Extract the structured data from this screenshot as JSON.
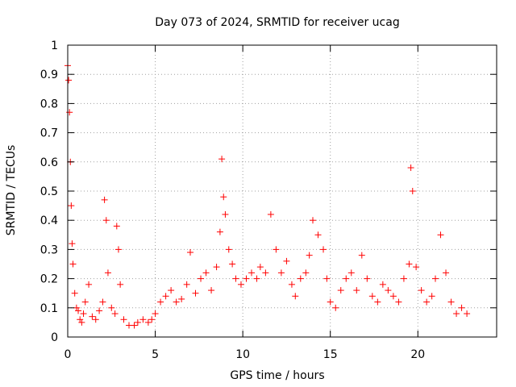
{
  "chart_data": {
    "type": "scatter",
    "title": "Day 073 of 2024, SRMTID for receiver ucag",
    "xlabel": "GPS time / hours",
    "ylabel": "SRMTID / TECUs",
    "xlim": [
      0,
      24.5
    ],
    "ylim": [
      0,
      1
    ],
    "xticks": [
      0,
      5,
      10,
      15,
      20
    ],
    "yticks": [
      0,
      0.1,
      0.2,
      0.3,
      0.4,
      0.5,
      0.6,
      0.7,
      0.8,
      0.9,
      1
    ],
    "ytick_labels": [
      "0",
      "0.1",
      "0.2",
      "0.3",
      "0.4",
      "0.5",
      "0.6",
      "0.7",
      "0.8",
      "0.9",
      "1"
    ],
    "grid": true,
    "marker": "+",
    "series": [
      {
        "name": "SRMTID",
        "color": "#ff0000",
        "x": [
          0.0,
          0.05,
          0.1,
          0.15,
          0.2,
          0.25,
          0.3,
          0.4,
          0.5,
          0.6,
          0.7,
          0.8,
          0.9,
          1.0,
          1.2,
          1.4,
          1.6,
          1.8,
          2.0,
          2.1,
          2.2,
          2.3,
          2.5,
          2.7,
          2.8,
          2.9,
          3.0,
          3.2,
          3.5,
          3.8,
          4.0,
          4.3,
          4.6,
          4.8,
          5.0,
          5.3,
          5.6,
          5.9,
          6.2,
          6.5,
          6.8,
          7.0,
          7.3,
          7.6,
          7.9,
          8.2,
          8.5,
          8.7,
          8.8,
          8.9,
          9.0,
          9.2,
          9.4,
          9.6,
          9.9,
          10.2,
          10.5,
          10.8,
          11.0,
          11.3,
          11.6,
          11.9,
          12.2,
          12.5,
          12.8,
          13.0,
          13.3,
          13.6,
          13.8,
          14.0,
          14.3,
          14.6,
          14.8,
          15.0,
          15.3,
          15.6,
          15.9,
          16.2,
          16.5,
          16.8,
          17.1,
          17.4,
          17.7,
          18.0,
          18.3,
          18.6,
          18.9,
          19.2,
          19.5,
          19.6,
          19.7,
          19.9,
          20.2,
          20.5,
          20.8,
          21.0,
          21.3,
          21.6,
          21.9,
          22.2,
          22.5,
          22.8
        ],
        "y": [
          0.93,
          0.88,
          0.77,
          0.6,
          0.45,
          0.32,
          0.25,
          0.15,
          0.1,
          0.09,
          0.06,
          0.05,
          0.08,
          0.12,
          0.18,
          0.07,
          0.06,
          0.09,
          0.12,
          0.47,
          0.4,
          0.22,
          0.1,
          0.08,
          0.38,
          0.3,
          0.18,
          0.06,
          0.04,
          0.04,
          0.05,
          0.06,
          0.05,
          0.06,
          0.08,
          0.12,
          0.14,
          0.16,
          0.12,
          0.13,
          0.18,
          0.29,
          0.15,
          0.2,
          0.22,
          0.16,
          0.24,
          0.36,
          0.61,
          0.48,
          0.42,
          0.3,
          0.25,
          0.2,
          0.18,
          0.2,
          0.22,
          0.2,
          0.24,
          0.22,
          0.42,
          0.3,
          0.22,
          0.26,
          0.18,
          0.14,
          0.2,
          0.22,
          0.28,
          0.4,
          0.35,
          0.3,
          0.2,
          0.12,
          0.1,
          0.16,
          0.2,
          0.22,
          0.16,
          0.28,
          0.2,
          0.14,
          0.12,
          0.18,
          0.16,
          0.14,
          0.12,
          0.2,
          0.25,
          0.58,
          0.5,
          0.24,
          0.16,
          0.12,
          0.14,
          0.2,
          0.35,
          0.22,
          0.12,
          0.08,
          0.1,
          0.08
        ]
      }
    ]
  }
}
